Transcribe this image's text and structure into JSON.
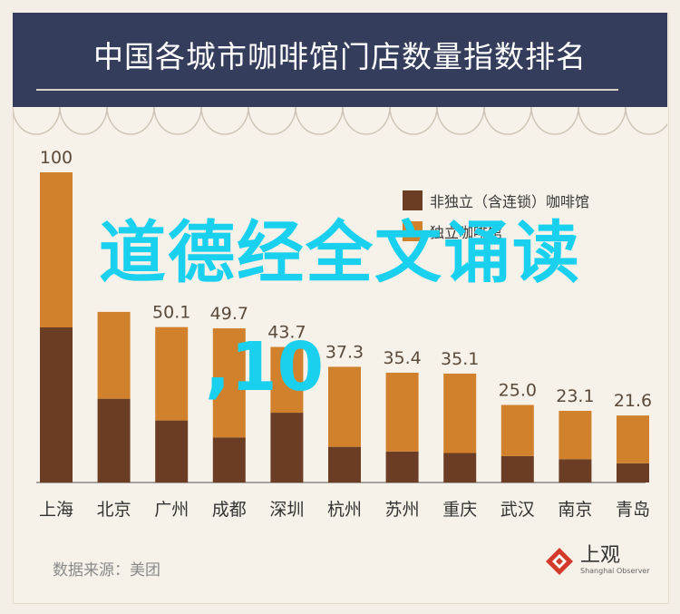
{
  "title": "中国各城市咖啡馆门店数量指数排名",
  "chart_data": {
    "type": "bar",
    "stacked": true,
    "categories": [
      "上海",
      "北京",
      "广州",
      "成都",
      "深圳",
      "杭州",
      "苏州",
      "重庆",
      "武汉",
      "南京",
      "青岛"
    ],
    "totals_labels": [
      "100",
      "",
      "50.1",
      "49.7",
      "43.7",
      "37.3",
      "35.4",
      "35.1",
      "25.0",
      "23.1",
      "21.6"
    ],
    "series": [
      {
        "name": "非独立（含连锁）咖啡馆",
        "values": [
          50,
          27,
          20,
          14.5,
          22.5,
          11.5,
          10,
          9.5,
          8.5,
          7.5,
          6.2
        ]
      },
      {
        "name": "独立咖啡馆",
        "values": [
          50,
          28,
          30.1,
          35.2,
          21.2,
          25.8,
          25.4,
          25.6,
          16.5,
          15.6,
          15.4
        ]
      }
    ],
    "ylim": [
      0,
      100
    ],
    "colors": {
      "dependent": "#6b3d24",
      "independent": "#d1812b"
    },
    "legend_position": "top-right",
    "grid": false
  },
  "overlay": {
    "line1": "道德经全文诵读",
    "line2": ",10"
  },
  "source": "数据来源：美团",
  "logo": {
    "main": "上观",
    "sub": "Shanghai Observer"
  }
}
